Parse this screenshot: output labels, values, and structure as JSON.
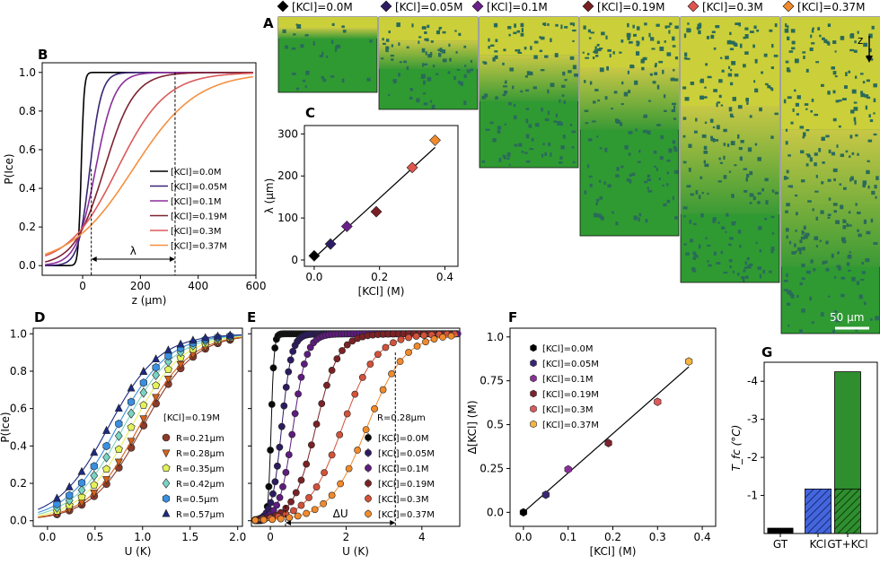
{
  "panel_letters": {
    "A": "A",
    "B": "B",
    "C": "C",
    "D": "D",
    "E": "E",
    "F": "F",
    "G": "G"
  },
  "concentrations": [
    {
      "label": "[KCl]=0.0M",
      "color": "#000000",
      "depth_um": 0
    },
    {
      "label": "[KCl]=0.05M",
      "color": "#2e1c63",
      "depth_um": 40
    },
    {
      "label": "[KCl]=0.1M",
      "color": "#6b1f8a",
      "depth_um": 80
    },
    {
      "label": "[KCl]=0.19M",
      "color": "#7a1e24",
      "depth_um": 115
    },
    {
      "label": "[KCl]=0.3M",
      "color": "#e0554e",
      "depth_um": 220
    },
    {
      "label": "[KCl]=0.37M",
      "color": "#f08a2c",
      "depth_um": 285
    }
  ],
  "panelA": {
    "axis_label": "z",
    "scale_bar": "50 μm"
  },
  "panelB": {
    "chart_data": {
      "type": "line",
      "xlabel": "z (μm)",
      "ylabel": "P(Ice)",
      "xlim": [
        -140,
        600
      ],
      "ylim": [
        -0.05,
        1.05
      ],
      "xticks": [
        "0",
        "200",
        "400",
        "600"
      ],
      "yticks": [
        "0.0",
        "0.2",
        "0.4",
        "0.6",
        "0.8",
        "1.0"
      ],
      "series": [
        {
          "name": "[KCl]=0.0M",
          "color": "#000000",
          "center": -5,
          "width": 5
        },
        {
          "name": "[KCl]=0.05M",
          "color": "#3a2575",
          "center": 25,
          "width": 20
        },
        {
          "name": "[KCl]=0.1M",
          "color": "#8b2f9a",
          "center": 45,
          "width": 33
        },
        {
          "name": "[KCl]=0.19M",
          "color": "#7e2230",
          "center": 75,
          "width": 52
        },
        {
          "name": "[KCl]=0.3M",
          "color": "#dd5a5a",
          "center": 120,
          "width": 85
        },
        {
          "name": "[KCl]=0.37M",
          "color": "#f59040",
          "center": 175,
          "width": 110
        }
      ],
      "annotation": "λ",
      "lambda_range": [
        30,
        320
      ]
    }
  },
  "panelC": {
    "chart_data": {
      "type": "scatter",
      "xlabel": "[KCl] (M)",
      "ylabel": "λ (μm)",
      "xlim": [
        -0.03,
        0.44
      ],
      "ylim": [
        -15,
        320
      ],
      "xticks": [
        "0.0",
        "0.2",
        "0.4"
      ],
      "yticks": [
        "0",
        "100",
        "200",
        "300"
      ],
      "x": [
        0.0,
        0.05,
        0.1,
        0.19,
        0.3,
        0.37
      ],
      "y": [
        10,
        38,
        80,
        115,
        220,
        285
      ],
      "fit": {
        "x": [
          0,
          0.37
        ],
        "y": [
          5,
          268
        ]
      }
    }
  },
  "panelD": {
    "chart_data": {
      "type": "scatter",
      "xlabel": "U (K)",
      "ylabel": "P(Ice)",
      "xlim": [
        -0.15,
        2.05
      ],
      "ylim": [
        -0.03,
        1.03
      ],
      "xticks": [
        "0.0",
        "0.5",
        "1.0",
        "1.5",
        "2.0"
      ],
      "yticks": [
        "0.0",
        "0.2",
        "0.4",
        "0.6",
        "0.8",
        "1.0"
      ],
      "legend_title": "[KCl]=0.19M",
      "series": [
        {
          "name": "R=0.21μm",
          "color": "#8c3a2a",
          "marker": "circle",
          "center": 1.0,
          "width": 0.27
        },
        {
          "name": "R=0.28μm",
          "color": "#d4621a",
          "marker": "tri-down",
          "center": 0.96,
          "width": 0.27
        },
        {
          "name": "R=0.35μm",
          "color": "#e4f25a",
          "marker": "pentagon",
          "center": 0.88,
          "width": 0.27
        },
        {
          "name": "R=0.42μm",
          "color": "#7ad3c3",
          "marker": "diamond",
          "center": 0.8,
          "width": 0.27
        },
        {
          "name": "R=0.5μm",
          "color": "#3a8fe0",
          "marker": "hexagon",
          "center": 0.73,
          "width": 0.27
        },
        {
          "name": "R=0.57μm",
          "color": "#1c2a80",
          "marker": "triangle",
          "center": 0.64,
          "width": 0.27
        }
      ]
    }
  },
  "panelE": {
    "chart_data": {
      "type": "scatter",
      "xlabel": "U (K)",
      "ylabel": "",
      "xlim": [
        -0.5,
        5
      ],
      "ylim": [
        -0.03,
        1.03
      ],
      "xticks": [
        "0",
        "2",
        "4"
      ],
      "legend_title": "R=0.28μm",
      "series": [
        {
          "name": "[KCl]=0.0M",
          "color": "#0a0a0a",
          "center": 0.02,
          "width": 0.04
        },
        {
          "name": "[KCl]=0.05M",
          "color": "#2d1b60",
          "center": 0.3,
          "width": 0.13
        },
        {
          "name": "[KCl]=0.1M",
          "color": "#5e1c7e",
          "center": 0.6,
          "width": 0.18
        },
        {
          "name": "[KCl]=0.19M",
          "color": "#7b2226",
          "center": 1.2,
          "width": 0.3
        },
        {
          "name": "[KCl]=0.3M",
          "color": "#d3523a",
          "center": 1.9,
          "width": 0.45
        },
        {
          "name": "[KCl]=0.37M",
          "color": "#f08a2c",
          "center": 2.55,
          "width": 0.5
        }
      ],
      "annotation": "ΔU",
      "du_range": [
        0.4,
        3.3
      ]
    }
  },
  "panelF": {
    "chart_data": {
      "type": "scatter",
      "xlabel": "[KCl] (M)",
      "ylabel": "Δ[KCl] (M)",
      "xlim": [
        -0.03,
        0.43
      ],
      "ylim": [
        -0.08,
        1.05
      ],
      "xticks": [
        "0.0",
        "0.1",
        "0.2",
        "0.3",
        "0.4"
      ],
      "yticks": [
        "0.0",
        "0.25",
        "0.5",
        "0.75",
        "1.0"
      ],
      "x": [
        0.0,
        0.05,
        0.1,
        0.19,
        0.3,
        0.37
      ],
      "y": [
        0.0,
        0.1,
        0.245,
        0.395,
        0.63,
        0.86
      ],
      "colors": [
        "#000000",
        "#3a2575",
        "#8b2f9a",
        "#7e2230",
        "#dd5a5a",
        "#f5b540"
      ],
      "series_names": [
        "[KCl]=0.0M",
        "[KCl]=0.05M",
        "[KCl]=0.1M",
        "[KCl]=0.19M",
        "[KCl]=0.3M",
        "[KCl]=0.37M"
      ],
      "fit": {
        "x": [
          0,
          0.37
        ],
        "y": [
          0,
          0.83
        ]
      }
    }
  },
  "panelG": {
    "chart_data": {
      "type": "bar",
      "categories": [
        "GT",
        "KCl",
        "GT+KCl"
      ],
      "values": [
        -0.15,
        -1.17,
        -4.25
      ],
      "gt_part_of_combined": -1.17,
      "ylabel": "T_fc (°C)",
      "ylim": [
        0,
        -4.5
      ],
      "yticks": [
        "-1",
        "-2",
        "-3",
        "-4"
      ]
    }
  }
}
